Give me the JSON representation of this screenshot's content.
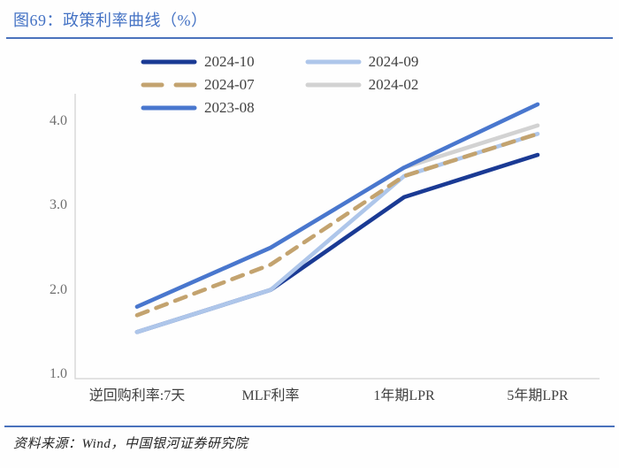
{
  "figure": {
    "title": "图69：政策利率曲线（%）",
    "source": "资料来源：Wind，中国银河证券研究院",
    "accent_color": "#4472C4"
  },
  "chart_data": {
    "type": "line",
    "title": "图69：政策利率曲线（%）",
    "unit": "%",
    "categories": [
      "逆回购利率:7天",
      "MLF利率",
      "1年期LPR",
      "5年期LPR"
    ],
    "series": [
      {
        "name": "2024-10",
        "values": [
          1.5,
          2.0,
          3.1,
          3.6
        ],
        "color": "#1A3A94",
        "style": "solid"
      },
      {
        "name": "2024-09",
        "values": [
          1.5,
          2.0,
          3.35,
          3.85
        ],
        "color": "#AEC6EA",
        "style": "solid"
      },
      {
        "name": "2024-07",
        "values": [
          1.7,
          2.3,
          3.35,
          3.85
        ],
        "color": "#C3A36F",
        "style": "dashed"
      },
      {
        "name": "2024-02",
        "values": [
          1.8,
          2.5,
          3.45,
          3.95
        ],
        "color": "#D2D2D2",
        "style": "solid"
      },
      {
        "name": "2023-08",
        "values": [
          1.8,
          2.5,
          3.45,
          4.2
        ],
        "color": "#4977CE",
        "style": "solid"
      }
    ],
    "legend_order": [
      "2024-10",
      "2024-07",
      "2023-08",
      "2024-09",
      "2024-02"
    ],
    "draw_order": [
      "2024-10",
      "2024-02",
      "2024-09",
      "2024-07",
      "2023-08"
    ],
    "yticks": [
      "1.0",
      "2.0",
      "3.0",
      "4.0"
    ],
    "ylim": [
      1.0,
      4.3
    ],
    "grid": false,
    "legend_position": "top"
  }
}
